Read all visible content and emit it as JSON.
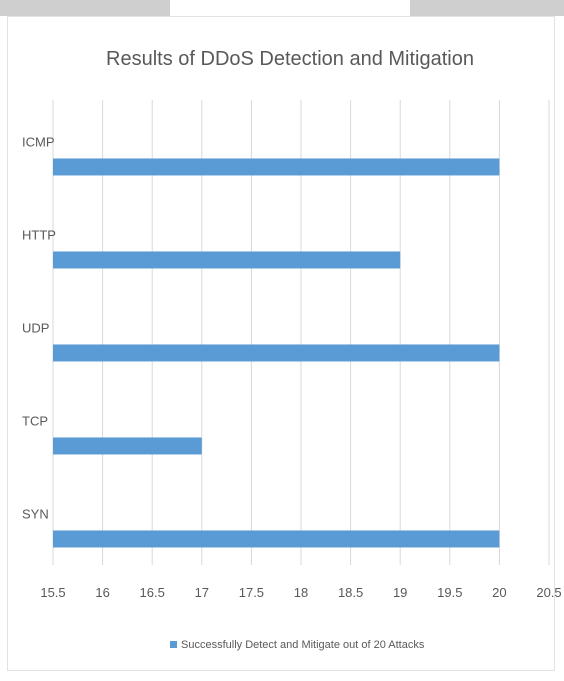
{
  "chart_data": {
    "type": "bar",
    "orientation": "horizontal",
    "title": "Results of DDoS Detection and Mitigation",
    "xlabel": "",
    "ylabel": "",
    "categories": [
      "SYN",
      "TCP",
      "UDP",
      "HTTP",
      "ICMP"
    ],
    "series": [
      {
        "name": "Successfully Detect and Mitigate out of 20 Attacks",
        "values": [
          20,
          17,
          20,
          19,
          20
        ],
        "color": "#5b9bd5"
      }
    ],
    "xlim": [
      15.5,
      20.5
    ],
    "xticks": [
      "15.5",
      "16",
      "16.5",
      "17",
      "17.5",
      "18",
      "18.5",
      "19",
      "19.5",
      "20",
      "20.5"
    ],
    "grid": true,
    "legend_position": "bottom"
  },
  "colors": {
    "bar": "#5b9bd5",
    "gridline": "#d9d9d9",
    "text": "#595959"
  }
}
